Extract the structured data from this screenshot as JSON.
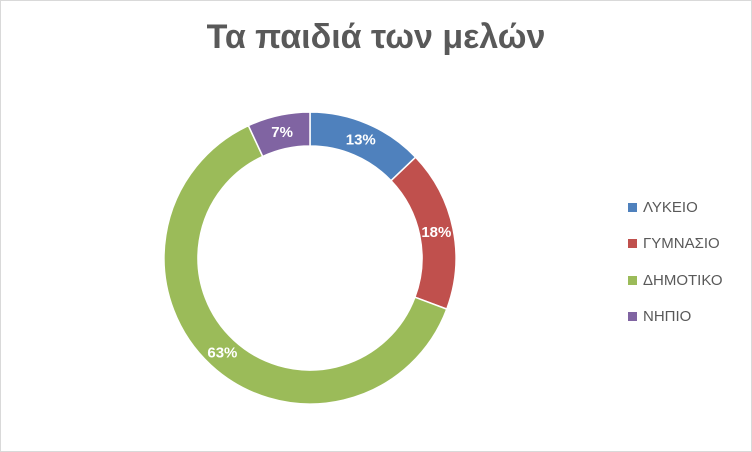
{
  "chart_data": {
    "type": "pie",
    "subtype": "doughnut",
    "title": "Τα παιδιά των μελών",
    "categories": [
      "ΛΥΚΕΙΟ",
      "ΓΥΜΝΑΣΙΟ",
      "ΔΗΜΟΤΙΚΟ",
      "ΝΗΠΙΟ"
    ],
    "values": [
      13,
      18,
      63,
      7
    ],
    "value_labels": [
      "13%",
      "18%",
      "63%",
      "7%"
    ],
    "colors": [
      "#4f81bd",
      "#c0504d",
      "#9bbb59",
      "#8064a2"
    ],
    "legend_position": "right"
  }
}
